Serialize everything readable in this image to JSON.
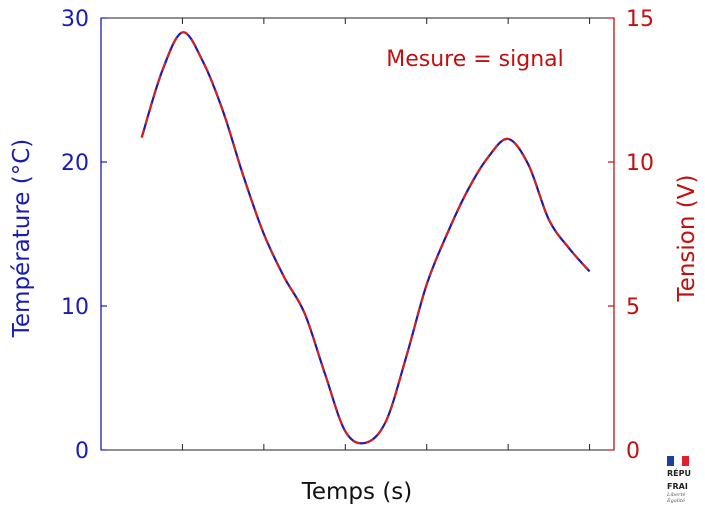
{
  "chart_data": {
    "type": "line",
    "xlabel": "Temps (s)",
    "xlim": [
      0,
      6.3
    ],
    "x_ticks": [
      1,
      2,
      3,
      4,
      5,
      6
    ],
    "y_left": {
      "label": "Température (°C)",
      "ylim": [
        0,
        30
      ],
      "ticks": [
        0,
        10,
        20,
        30
      ],
      "color": "#1a1ab4"
    },
    "y_right": {
      "label": "Tension (V)",
      "ylim": [
        0,
        15
      ],
      "ticks": [
        0,
        5,
        10,
        15
      ],
      "color": "#c01010"
    },
    "annotation": "Mesure = signal",
    "series": [
      {
        "axis": "left",
        "style": "solid",
        "color": "#1a1ab4",
        "x": [
          0.5,
          0.75,
          1.0,
          1.25,
          1.5,
          1.75,
          2.0,
          2.25,
          2.5,
          2.75,
          3.0,
          3.25,
          3.5,
          3.75,
          4.0,
          4.25,
          4.5,
          4.75,
          5.0,
          5.25,
          5.5,
          5.75,
          6.0
        ],
        "values": [
          21.7,
          26.3,
          29.0,
          27.0,
          23.5,
          19.0,
          15.0,
          12.0,
          9.5,
          5.3,
          1.3,
          0.5,
          2.0,
          6.5,
          11.5,
          15.0,
          18.0,
          20.3,
          21.6,
          19.8,
          16.0,
          14.0,
          12.4
        ]
      },
      {
        "axis": "right",
        "style": "dashed",
        "color": "#d42020",
        "x": [
          0.5,
          0.75,
          1.0,
          1.25,
          1.5,
          1.75,
          2.0,
          2.25,
          2.5,
          2.75,
          3.0,
          3.25,
          3.5,
          3.75,
          4.0,
          4.25,
          4.5,
          4.75,
          5.0,
          5.25,
          5.5,
          5.75,
          6.0
        ],
        "values": [
          10.85,
          13.15,
          14.5,
          13.5,
          11.75,
          9.5,
          7.5,
          6.0,
          4.75,
          2.65,
          0.65,
          0.25,
          1.0,
          3.25,
          5.75,
          7.5,
          9.0,
          10.15,
          10.8,
          9.9,
          8.0,
          7.0,
          6.2
        ]
      }
    ]
  },
  "logo": {
    "line1": "RÉPU",
    "line2": "FRAI",
    "motto1": "Liberté",
    "motto2": "Égalité",
    "flag_colors": [
      "#1a3fa6",
      "#ffffff",
      "#e0202c"
    ]
  }
}
